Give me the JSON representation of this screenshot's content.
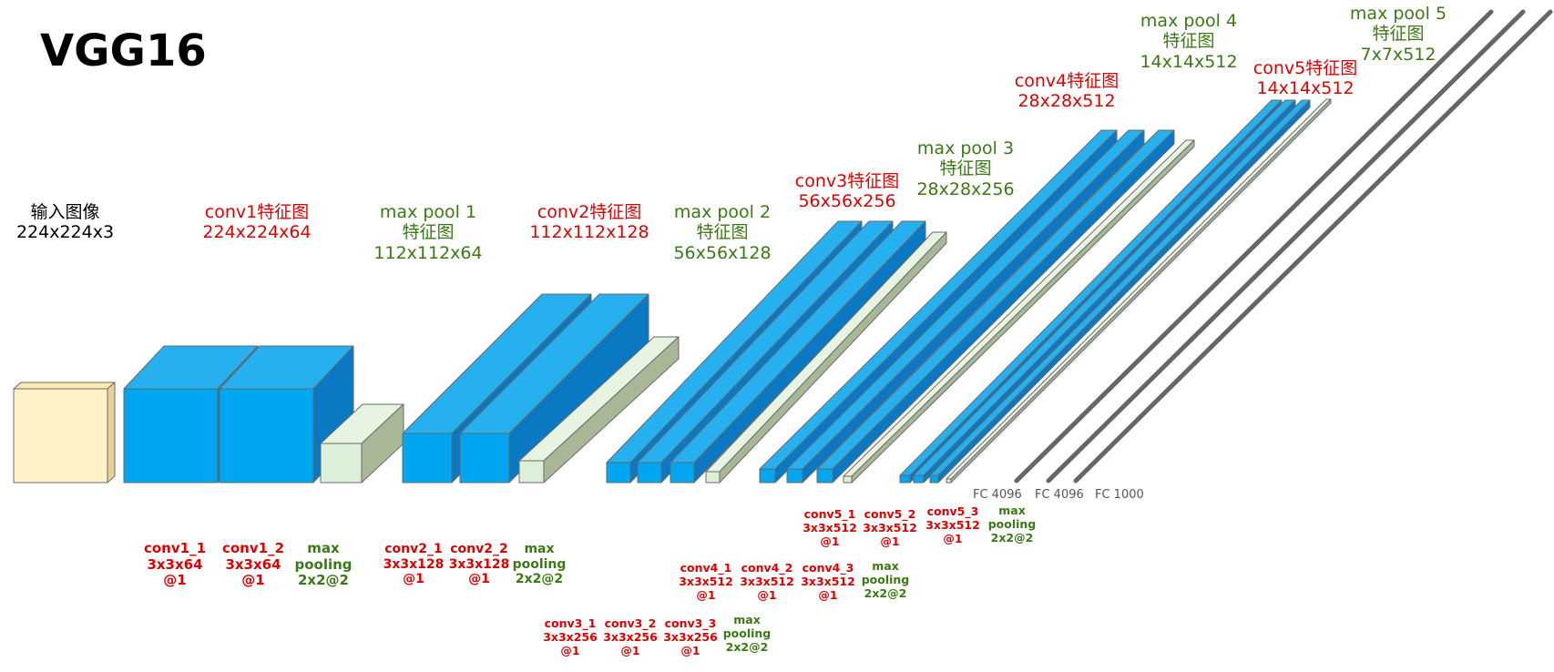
{
  "title": "VGG16",
  "input": {
    "line1": "输入图像",
    "line2": "224x224x3"
  },
  "feature_labels": [
    {
      "line1": "conv1特征图",
      "line2": "224x224x64"
    },
    {
      "line1": "max pool 1",
      "line2": "特征图",
      "line3": "112x112x64"
    },
    {
      "line1": "conv2特征图",
      "line2": "112x112x128"
    },
    {
      "line1": "max pool 2",
      "line2": "特征图",
      "line3": "56x56x128"
    },
    {
      "line1": "conv3特征图",
      "line2": "56x56x256"
    },
    {
      "line1": "max pool 3",
      "line2": "特征图",
      "line3": "28x28x256"
    },
    {
      "line1": "conv4特征图",
      "line2": "28x28x512"
    },
    {
      "line1": "max pool 4",
      "line2": "特征图",
      "line3": "14x14x512"
    },
    {
      "line1": "conv5特征图",
      "line2": "14x14x512"
    },
    {
      "line1": "max pool 5",
      "line2": "特征图",
      "line3": "7x7x512"
    }
  ],
  "layer_labels": {
    "conv1_1": {
      "name": "conv1_1",
      "kernel": "3x3x64",
      "stride": "@1"
    },
    "conv1_2": {
      "name": "conv1_2",
      "kernel": "3x3x64",
      "stride": "@1"
    },
    "pool1": {
      "name": "max",
      "kernel": "pooling",
      "stride": "2x2@2"
    },
    "conv2_1": {
      "name": "conv2_1",
      "kernel": "3x3x128",
      "stride": "@1"
    },
    "conv2_2": {
      "name": "conv2_2",
      "kernel": "3x3x128",
      "stride": "@1"
    },
    "pool2": {
      "name": "max",
      "kernel": "pooling",
      "stride": "2x2@2"
    },
    "conv3_1": {
      "name": "conv3_1",
      "kernel": "3x3x256",
      "stride": "@1"
    },
    "conv3_2": {
      "name": "conv3_2",
      "kernel": "3x3x256",
      "stride": "@1"
    },
    "conv3_3": {
      "name": "conv3_3",
      "kernel": "3x3x256",
      "stride": "@1"
    },
    "pool3": {
      "name": "max",
      "kernel": "pooling",
      "stride": "2x2@2"
    },
    "conv4_1": {
      "name": "conv4_1",
      "kernel": "3x3x512",
      "stride": "@1"
    },
    "conv4_2": {
      "name": "conv4_2",
      "kernel": "3x3x512",
      "stride": "@1"
    },
    "conv4_3": {
      "name": "conv4_3",
      "kernel": "3x3x512",
      "stride": "@1"
    },
    "pool4": {
      "name": "max",
      "kernel": "pooling",
      "stride": "2x2@2"
    },
    "conv5_1": {
      "name": "conv5_1",
      "kernel": "3x3x512",
      "stride": "@1"
    },
    "conv5_2": {
      "name": "conv5_2",
      "kernel": "3x3x512",
      "stride": "@1"
    },
    "conv5_3": {
      "name": "conv5_3",
      "kernel": "3x3x512",
      "stride": "@1"
    },
    "pool5": {
      "name": "max",
      "kernel": "pooling",
      "stride": "2x2@2"
    }
  },
  "fc_labels": [
    "FC 4096",
    "FC 4096",
    "FC 1000"
  ],
  "colors": {
    "input_front": "#fff2c6",
    "input_top": "#fde9b0",
    "input_side": "#e6d296",
    "conv_front": "#00a6f0",
    "conv_top": "#26b0ef",
    "conv_side": "#0a78c2",
    "pool_front": "#dcefd8",
    "pool_top": "#e7f4e2",
    "pool_side": "#a8b896",
    "edge": "#6a6a6a",
    "fc_line": "#666666"
  }
}
